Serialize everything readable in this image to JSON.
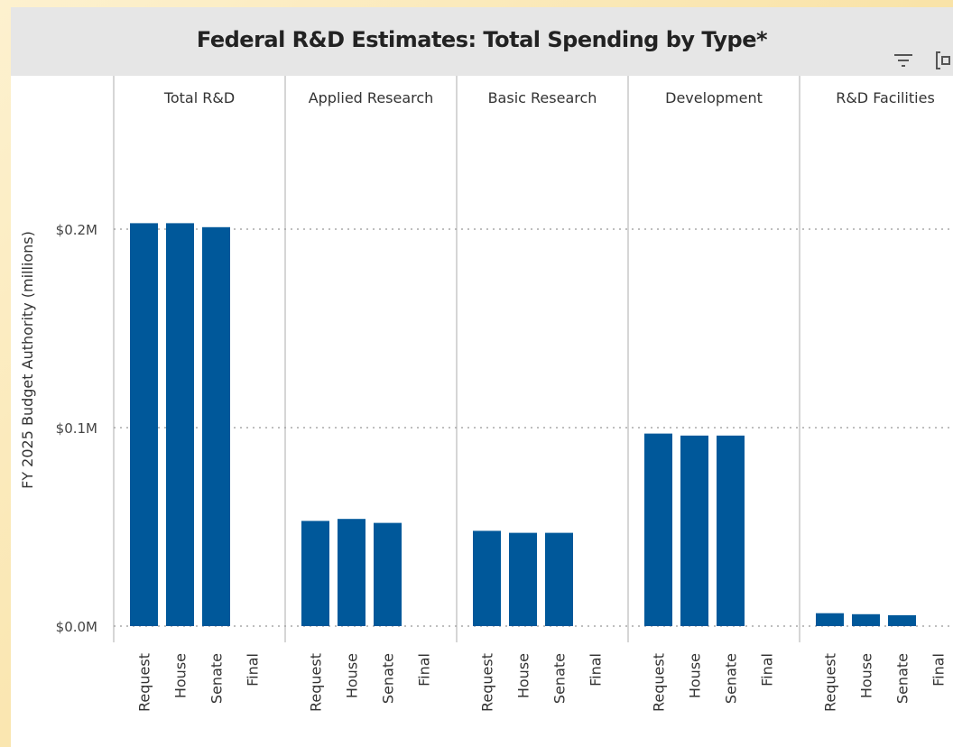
{
  "chart_data": {
    "type": "bar",
    "title": "Federal R&D Estimates: Total Spending by Type*",
    "ylabel": "FY 2025 Budget Authority (millions)",
    "xlabel": "",
    "ylim": [
      0,
      0.25
    ],
    "yticks": [
      {
        "value": 0,
        "label": "$0.0M"
      },
      {
        "value": 0.1,
        "label": "$0.1M"
      },
      {
        "value": 0.2,
        "label": "$0.2M"
      }
    ],
    "grid": true,
    "categories": [
      "Request",
      "House",
      "Senate",
      "Final"
    ],
    "panels": [
      {
        "name": "Total R&D",
        "values": [
          0.203,
          0.203,
          0.201,
          null
        ]
      },
      {
        "name": "Applied Research",
        "values": [
          0.053,
          0.054,
          0.052,
          null
        ]
      },
      {
        "name": "Basic Research",
        "values": [
          0.048,
          0.047,
          0.047,
          null
        ]
      },
      {
        "name": "Development",
        "values": [
          0.097,
          0.096,
          0.096,
          null
        ]
      },
      {
        "name": "R&D Facilities",
        "values": [
          0.0065,
          0.006,
          0.0055,
          null
        ]
      }
    ],
    "bar_color": "#00589a"
  },
  "icons": {
    "filter": "filter-icon",
    "focus": "focus-mode-icon"
  }
}
